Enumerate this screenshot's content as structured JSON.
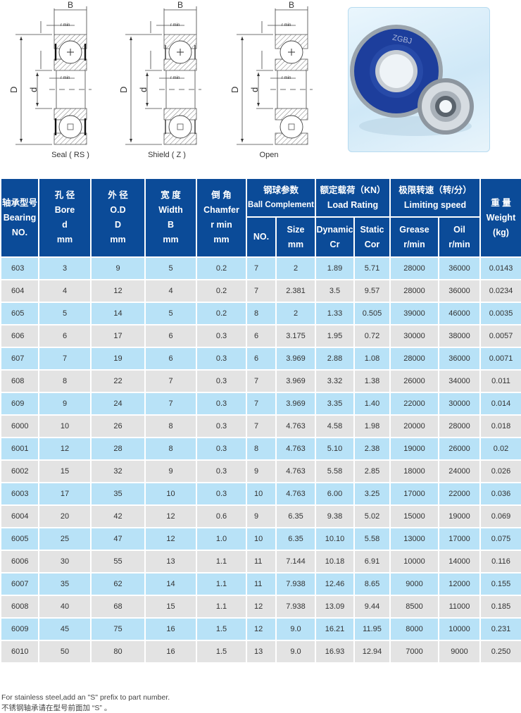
{
  "diagrams": {
    "labels": {
      "B": "B",
      "D": "D",
      "d": "d",
      "rmin": "r min"
    },
    "captions": [
      "Seal ( RS )",
      "Shield ( Z )",
      "Open"
    ]
  },
  "photo": {
    "brand_text": "ZGBJ"
  },
  "colors": {
    "header": "#0b4b98",
    "row_blue": "#b8e2f7",
    "row_gray": "#e3e3e3"
  },
  "table": {
    "headers": {
      "bearing": {
        "cn": "轴承型号",
        "en1": "Bearing",
        "en2": "NO."
      },
      "bore": {
        "cn": "孔 径",
        "en1": "Bore",
        "en2": "d",
        "en3": "mm"
      },
      "od": {
        "cn": "外 径",
        "en1": "O.D",
        "en2": "D",
        "en3": "mm"
      },
      "width": {
        "cn": "宽 度",
        "en1": "Width",
        "en2": "B",
        "en3": "mm"
      },
      "chamfer": {
        "cn": "倒 角",
        "en1": "Chamfer",
        "en2": "r min",
        "en3": "mm"
      },
      "ball": {
        "cn": "钢球参数",
        "en": "Ball Complement",
        "no": "NO.",
        "size1": "Size",
        "size2": "mm"
      },
      "load": {
        "cn": "额定载荷（KN）",
        "en": "Load Rating",
        "dyn1": "Dynamic",
        "dyn2": "Cr",
        "sta1": "Static",
        "sta2": "Cor"
      },
      "speed": {
        "cn": "极限转速（转/分）",
        "en": "Limiting speed",
        "gr1": "Grease",
        "gr2": "r/min",
        "oil1": "Oil",
        "oil2": "r/min"
      },
      "weight": {
        "cn": "重 量",
        "en1": "Weight",
        "en2": "(kg)"
      }
    },
    "rows": [
      [
        "603",
        "3",
        "9",
        "5",
        "0.2",
        "7",
        "2",
        "1.89",
        "5.71",
        "28000",
        "36000",
        "0.0143"
      ],
      [
        "604",
        "4",
        "12",
        "4",
        "0.2",
        "7",
        "2.381",
        "3.5",
        "9.57",
        "28000",
        "36000",
        "0.0234"
      ],
      [
        "605",
        "5",
        "14",
        "5",
        "0.2",
        "8",
        "2",
        "1.33",
        "0.505",
        "39000",
        "46000",
        "0.0035"
      ],
      [
        "606",
        "6",
        "17",
        "6",
        "0.3",
        "6",
        "3.175",
        "1.95",
        "0.72",
        "30000",
        "38000",
        "0.0057"
      ],
      [
        "607",
        "7",
        "19",
        "6",
        "0.3",
        "6",
        "3.969",
        "2.88",
        "1.08",
        "28000",
        "36000",
        "0.0071"
      ],
      [
        "608",
        "8",
        "22",
        "7",
        "0.3",
        "7",
        "3.969",
        "3.32",
        "1.38",
        "26000",
        "34000",
        "0.011"
      ],
      [
        "609",
        "9",
        "24",
        "7",
        "0.3",
        "7",
        "3.969",
        "3.35",
        "1.40",
        "22000",
        "30000",
        "0.014"
      ],
      [
        "6000",
        "10",
        "26",
        "8",
        "0.3",
        "7",
        "4.763",
        "4.58",
        "1.98",
        "20000",
        "28000",
        "0.018"
      ],
      [
        "6001",
        "12",
        "28",
        "8",
        "0.3",
        "8",
        "4.763",
        "5.10",
        "2.38",
        "19000",
        "26000",
        "0.02"
      ],
      [
        "6002",
        "15",
        "32",
        "9",
        "0.3",
        "9",
        "4.763",
        "5.58",
        "2.85",
        "18000",
        "24000",
        "0.026"
      ],
      [
        "6003",
        "17",
        "35",
        "10",
        "0.3",
        "10",
        "4.763",
        "6.00",
        "3.25",
        "17000",
        "22000",
        "0.036"
      ],
      [
        "6004",
        "20",
        "42",
        "12",
        "0.6",
        "9",
        "6.35",
        "9.38",
        "5.02",
        "15000",
        "19000",
        "0.069"
      ],
      [
        "6005",
        "25",
        "47",
        "12",
        "1.0",
        "10",
        "6.35",
        "10.10",
        "5.58",
        "13000",
        "17000",
        "0.075"
      ],
      [
        "6006",
        "30",
        "55",
        "13",
        "1.1",
        "11",
        "7.144",
        "10.18",
        "6.91",
        "10000",
        "14000",
        "0.116"
      ],
      [
        "6007",
        "35",
        "62",
        "14",
        "1.1",
        "11",
        "7.938",
        "12.46",
        "8.65",
        "9000",
        "12000",
        "0.155"
      ],
      [
        "6008",
        "40",
        "68",
        "15",
        "1.1",
        "12",
        "7.938",
        "13.09",
        "9.44",
        "8500",
        "11000",
        "0.185"
      ],
      [
        "6009",
        "45",
        "75",
        "16",
        "1.5",
        "12",
        "9.0",
        "16.21",
        "11.95",
        "8000",
        "10000",
        "0.231"
      ],
      [
        "6010",
        "50",
        "80",
        "16",
        "1.5",
        "13",
        "9.0",
        "16.93",
        "12.94",
        "7000",
        "9000",
        "0.250"
      ]
    ]
  },
  "notes": {
    "en": "For stainless steel,add an \"S\" prefix to part number.",
    "cn": "不锈钢轴承请在型号前面加 “S” 。"
  }
}
